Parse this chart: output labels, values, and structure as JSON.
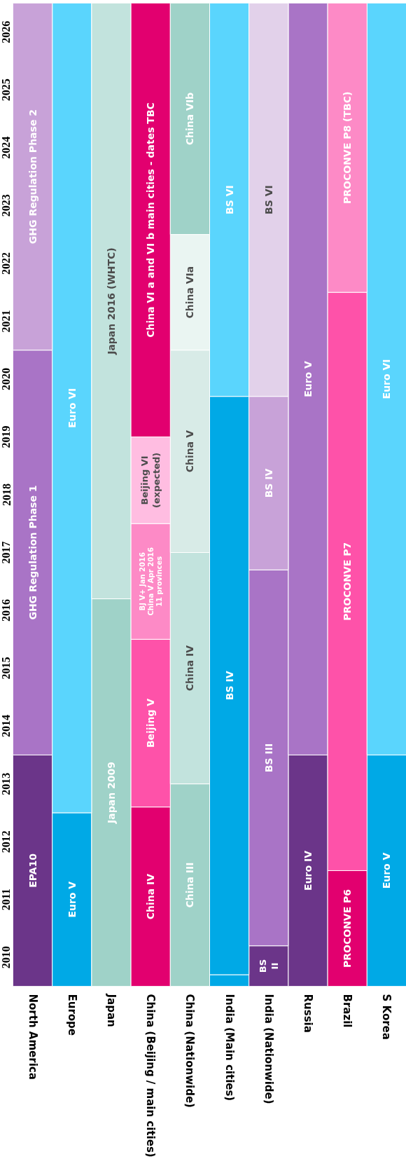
{
  "chart_data": {
    "type": "bar",
    "categories": [
      "North America",
      "Europe",
      "Japan",
      "China (Beijing / main cities)",
      "China (Nationwide)",
      "India (Main cities)",
      "India (Nationwide)",
      "Russia",
      "Brazil",
      "S Korea"
    ],
    "series": [
      {
        "base": [
          2010,
          2010,
          2010,
          2010,
          2010,
          2010,
          2010,
          2010,
          2010,
          2010
        ],
        "values": [
          4,
          3,
          6.7,
          3.1,
          3.5,
          0.2,
          0.7,
          4,
          2,
          4
        ],
        "colors": [
          "#6b3589",
          "#00a9e6",
          "#9fd2c8",
          "#e2006f",
          "#9fd2c8",
          "#00a9e6",
          "#6b3589",
          "#6b3589",
          "#e2006f",
          "#00a9e6"
        ],
        "value_labels": [
          "EPA10",
          "Euro V",
          "Japan 2009",
          "China IV",
          "China III",
          null,
          "BS\nII",
          "Euro IV",
          "PROCONVE P6",
          "Euro V"
        ]
      },
      {
        "base": [
          2014,
          2013,
          2016.7,
          2013.1,
          2013.5,
          2010.2,
          2010.7,
          2014,
          2012,
          2014
        ],
        "values": [
          7,
          14,
          10.3,
          2.9,
          4,
          10,
          6.5,
          13,
          10,
          13
        ],
        "colors": [
          "#a974c6",
          "#5ad5fd",
          "#c2e3dd",
          "#fe52a9",
          "#c2e3dd",
          "#00a9e6",
          "#a974c6",
          "#a974c6",
          "#fe52a9",
          "#5ad5fd"
        ],
        "value_labels": [
          "GHG Regulation Phase 1",
          "Euro VI",
          "Japan 2016 (WHTC)",
          "Beijing V",
          "China IV",
          "BS IV",
          "BS III",
          "Euro V",
          "PROCONVE P7",
          "Euro VI"
        ]
      },
      {
        "base": [
          2021,
          null,
          null,
          2016,
          2017.5,
          2020.2,
          2017.2,
          null,
          2022,
          null
        ],
        "values": [
          6,
          null,
          null,
          2,
          3.5,
          6.8,
          3,
          null,
          5,
          null
        ],
        "colors": [
          "#c8a2d8",
          null,
          null,
          "#fd8ac6",
          "#d8ebe7",
          "#5ad5fd",
          "#c8a2d8",
          null,
          "#fd8ac6",
          null
        ],
        "value_labels": [
          "GHG Regulation Phase 2",
          null,
          null,
          "BJ V+ Jan 2016\nChina V Apr 2016\n11 provinces",
          "China V",
          "BS VI",
          "BS IV",
          null,
          "PROCONVE P8 (TBC)",
          null
        ]
      },
      {
        "base": [
          null,
          null,
          null,
          2018,
          2021,
          null,
          2020.2,
          null,
          null,
          null
        ],
        "values": [
          null,
          null,
          null,
          1.5,
          2,
          null,
          6.8,
          null,
          null,
          null
        ],
        "colors": [
          null,
          null,
          null,
          "#ffbde1",
          "#eaf5f2",
          null,
          "#e2d1ea",
          null,
          null,
          null
        ],
        "value_labels": [
          null,
          null,
          null,
          "Beijing VI\n(expected)",
          "China VIa",
          null,
          "BS VI",
          null,
          null,
          null
        ]
      },
      {
        "base": [
          null,
          null,
          null,
          2019.5,
          2023,
          null,
          null,
          null,
          null,
          null
        ],
        "values": [
          null,
          null,
          null,
          7.5,
          4,
          null,
          null,
          null,
          null,
          null
        ],
        "colors": [
          null,
          null,
          null,
          "#e2006f",
          "#9fd2c8",
          null,
          null,
          null,
          null,
          null
        ],
        "value_labels": [
          null,
          null,
          null,
          "China VI a and VI b main cities - dates TBC",
          "China VIb",
          null,
          null,
          null,
          null,
          null
        ]
      }
    ],
    "ylim": [
      2010,
      2027
    ],
    "yticks": [
      {
        "value": 2010.5,
        "label": "2010"
      },
      {
        "value": 2011.5,
        "label": "2011"
      },
      {
        "value": 2012.5,
        "label": "2012"
      },
      {
        "value": 2013.5,
        "label": "2013"
      },
      {
        "value": 2014.5,
        "label": "2014"
      },
      {
        "value": 2015.5,
        "label": "2015"
      },
      {
        "value": 2016.5,
        "label": "2016"
      },
      {
        "value": 2017.5,
        "label": "2017"
      },
      {
        "value": 2018.5,
        "label": "2018"
      },
      {
        "value": 2019.5,
        "label": "2019"
      },
      {
        "value": 2020.5,
        "label": "2020"
      },
      {
        "value": 2021.5,
        "label": "2021"
      },
      {
        "value": 2022.5,
        "label": "2022"
      },
      {
        "value": 2023.5,
        "label": "2023"
      },
      {
        "value": 2024.5,
        "label": "2024"
      },
      {
        "value": 2025.5,
        "label": "2025"
      },
      {
        "value": 2026.5,
        "label": "2026"
      }
    ]
  }
}
